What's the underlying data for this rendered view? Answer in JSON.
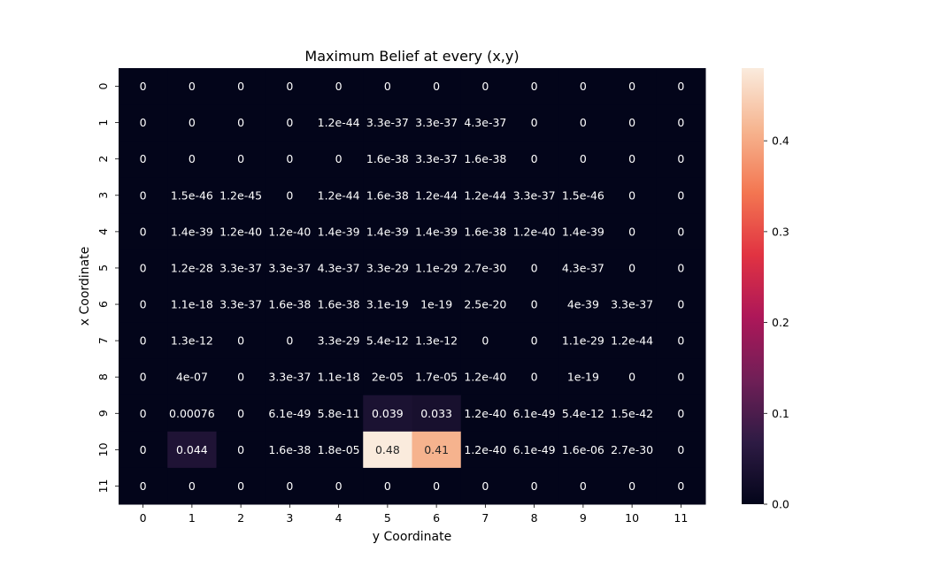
{
  "chart_data": {
    "type": "heatmap",
    "title": "Maximum Belief at every (x,y)",
    "xlabel": "y Coordinate",
    "ylabel": "x Coordinate",
    "x_categories": [
      "0",
      "1",
      "2",
      "3",
      "4",
      "5",
      "6",
      "7",
      "8",
      "9",
      "10",
      "11"
    ],
    "y_categories": [
      "0",
      "1",
      "2",
      "3",
      "4",
      "5",
      "6",
      "7",
      "8",
      "9",
      "10",
      "11"
    ],
    "values": [
      [
        0,
        0,
        0,
        0,
        0,
        0,
        0,
        0,
        0,
        0,
        0,
        0
      ],
      [
        0,
        0,
        0,
        0,
        1.2e-44,
        3.3e-37,
        3.3e-37,
        4.3e-37,
        0,
        0,
        0,
        0
      ],
      [
        0,
        0,
        0,
        0,
        0,
        1.6e-38,
        3.3e-37,
        1.6e-38,
        0,
        0,
        0,
        0
      ],
      [
        0,
        1.5e-46,
        1.2e-45,
        0,
        1.2e-44,
        1.6e-38,
        1.2e-44,
        1.2e-44,
        3.3e-37,
        1.5e-46,
        0,
        0
      ],
      [
        0,
        1.4e-39,
        1.2e-40,
        1.2e-40,
        1.4e-39,
        1.4e-39,
        1.4e-39,
        1.6e-38,
        1.2e-40,
        1.4e-39,
        0,
        0
      ],
      [
        0,
        1.2e-28,
        3.3e-37,
        3.3e-37,
        4.3e-37,
        3.3e-29,
        1.1e-29,
        2.7e-30,
        0,
        4.3e-37,
        0,
        0
      ],
      [
        0,
        1.1e-18,
        3.3e-37,
        1.6e-38,
        1.6e-38,
        3.1e-19,
        1e-19,
        2.5e-20,
        0,
        4e-39,
        3.3e-37,
        0
      ],
      [
        0,
        1.3e-12,
        0,
        0,
        3.3e-29,
        5.4e-12,
        1.3e-12,
        0,
        0,
        1.1e-29,
        1.2e-44,
        0
      ],
      [
        0,
        4e-07,
        0,
        3.3e-37,
        1.1e-18,
        2e-05,
        1.7e-05,
        1.2e-40,
        0,
        1e-19,
        0,
        0
      ],
      [
        0,
        0.00076,
        0,
        6.1e-49,
        5.8e-11,
        0.039,
        0.033,
        1.2e-40,
        6.1e-49,
        5.4e-12,
        1.5e-42,
        0
      ],
      [
        0,
        0.044,
        0,
        1.6e-38,
        1.8e-05,
        0.48,
        0.41,
        1.2e-40,
        6.1e-49,
        1.6e-06,
        2.7e-30,
        0
      ],
      [
        0,
        0,
        0,
        0,
        0,
        0,
        0,
        0,
        0,
        0,
        0,
        0
      ]
    ],
    "labels": [
      [
        "0",
        "0",
        "0",
        "0",
        "0",
        "0",
        "0",
        "0",
        "0",
        "0",
        "0",
        "0"
      ],
      [
        "0",
        "0",
        "0",
        "0",
        "1.2e-44",
        "3.3e-37",
        "3.3e-37",
        "4.3e-37",
        "0",
        "0",
        "0",
        "0"
      ],
      [
        "0",
        "0",
        "0",
        "0",
        "0",
        "1.6e-38",
        "3.3e-37",
        "1.6e-38",
        "0",
        "0",
        "0",
        "0"
      ],
      [
        "0",
        "1.5e-46",
        "1.2e-45",
        "0",
        "1.2e-44",
        "1.6e-38",
        "1.2e-44",
        "1.2e-44",
        "3.3e-37",
        "1.5e-46",
        "0",
        "0"
      ],
      [
        "0",
        "1.4e-39",
        "1.2e-40",
        "1.2e-40",
        "1.4e-39",
        "1.4e-39",
        "1.4e-39",
        "1.6e-38",
        "1.2e-40",
        "1.4e-39",
        "0",
        "0"
      ],
      [
        "0",
        "1.2e-28",
        "3.3e-37",
        "3.3e-37",
        "4.3e-37",
        "3.3e-29",
        "1.1e-29",
        "2.7e-30",
        "0",
        "4.3e-37",
        "0",
        "0"
      ],
      [
        "0",
        "1.1e-18",
        "3.3e-37",
        "1.6e-38",
        "1.6e-38",
        "3.1e-19",
        "1e-19",
        "2.5e-20",
        "0",
        "4e-39",
        "3.3e-37",
        "0"
      ],
      [
        "0",
        "1.3e-12",
        "0",
        "0",
        "3.3e-29",
        "5.4e-12",
        "1.3e-12",
        "0",
        "0",
        "1.1e-29",
        "1.2e-44",
        "0"
      ],
      [
        "0",
        "4e-07",
        "0",
        "3.3e-37",
        "1.1e-18",
        "2e-05",
        "1.7e-05",
        "1.2e-40",
        "0",
        "1e-19",
        "0",
        "0"
      ],
      [
        "0",
        "0.00076",
        "0",
        "6.1e-49",
        "5.8e-11",
        "0.039",
        "0.033",
        "1.2e-40",
        "6.1e-49",
        "5.4e-12",
        "1.5e-42",
        "0"
      ],
      [
        "0",
        "0.044",
        "0",
        "1.6e-38",
        "1.8e-05",
        "0.48",
        "0.41",
        "1.2e-40",
        "6.1e-49",
        "1.6e-06",
        "2.7e-30",
        "0"
      ],
      [
        "0",
        "0",
        "0",
        "0",
        "0",
        "0",
        "0",
        "0",
        "0",
        "0",
        "0",
        "0"
      ]
    ],
    "colorbar": {
      "min": 0,
      "max": 0.48,
      "ticks": [
        "0.0",
        "0.1",
        "0.2",
        "0.3",
        "0.4"
      ],
      "colormap": "rocket"
    },
    "colormap_stops": [
      "#03051a",
      "#2e1b44",
      "#701f57",
      "#ad1759",
      "#e13342",
      "#f37651",
      "#f6b48f",
      "#faebdd"
    ]
  }
}
